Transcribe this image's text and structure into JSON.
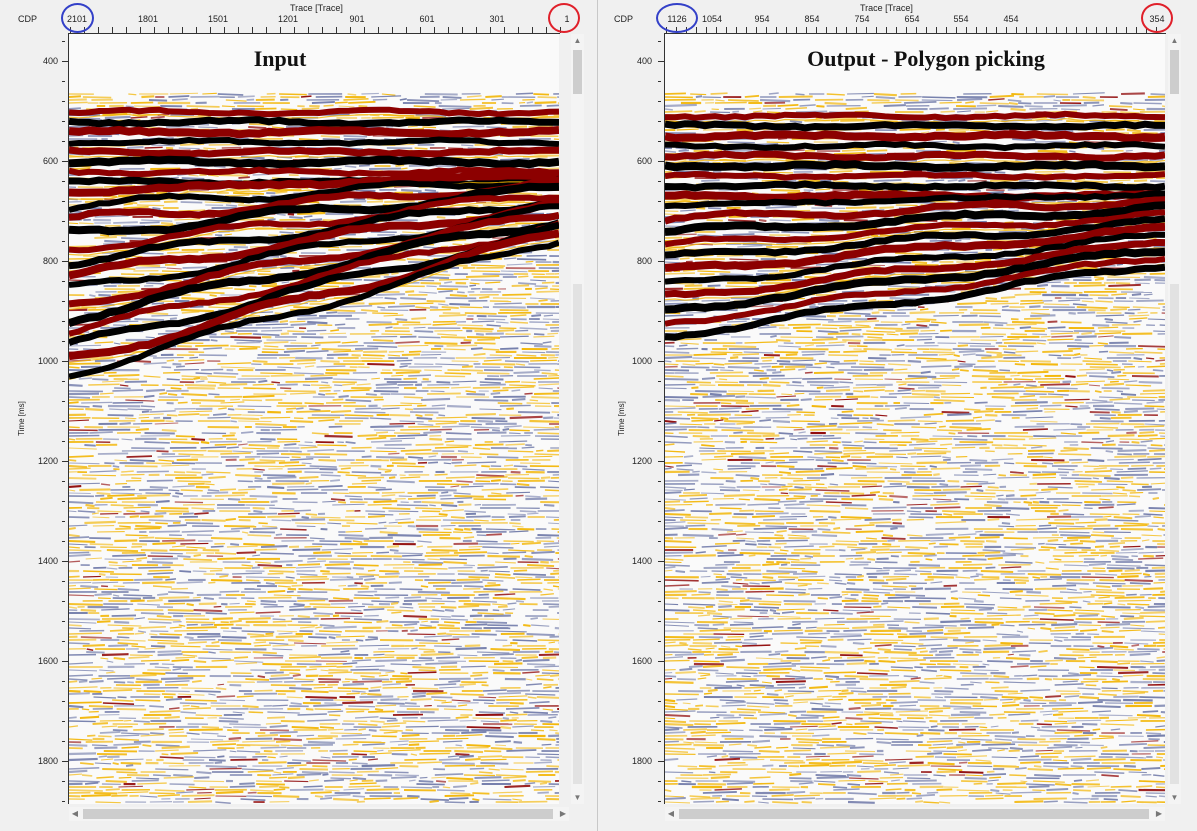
{
  "colors": {
    "annotation_blue": "#3340c8",
    "annotation_red": "#e0202a",
    "seismic_peak": "#8c0000",
    "seismic_trough": "#000000",
    "seismic_positive": "#f2b400",
    "seismic_negative": "#6f79a8"
  },
  "left": {
    "title": "Input",
    "cdp_label": "CDP",
    "x_axis_title": "Trace [Trace]",
    "y_axis_title": "Time [ms]",
    "x_ticks": [
      "2101",
      "1801",
      "1501",
      "1201",
      "901",
      "601",
      "301",
      "1"
    ],
    "x_first_label": "2101",
    "y_ticks": [
      "400",
      "600",
      "800",
      "1000",
      "1200",
      "1400",
      "1600",
      "1800"
    ]
  },
  "right": {
    "title": "Output - Polygon picking",
    "cdp_label": "CDP",
    "x_axis_title": "Trace [Trace]",
    "y_axis_title": "Time [ms]",
    "x_ticks": [
      "1126",
      "1054",
      "954",
      "854",
      "754",
      "654",
      "554",
      "454",
      "354"
    ],
    "y_ticks": [
      "400",
      "600",
      "800",
      "1000",
      "1200",
      "1400",
      "1600",
      "1800"
    ]
  },
  "annotations": [
    {
      "panel": "left",
      "color": "blue",
      "marks": "2101"
    },
    {
      "panel": "left",
      "color": "red",
      "marks": "1"
    },
    {
      "panel": "right",
      "color": "blue",
      "marks": "1126"
    },
    {
      "panel": "right",
      "color": "red",
      "marks": "354"
    }
  ],
  "icons": [
    "up-arrow-icon",
    "down-arrow-icon",
    "left-arrow-icon",
    "right-arrow-icon"
  ],
  "glyphs": {
    "up": "▲",
    "down": "▼",
    "left": "◀",
    "right": "▶"
  }
}
